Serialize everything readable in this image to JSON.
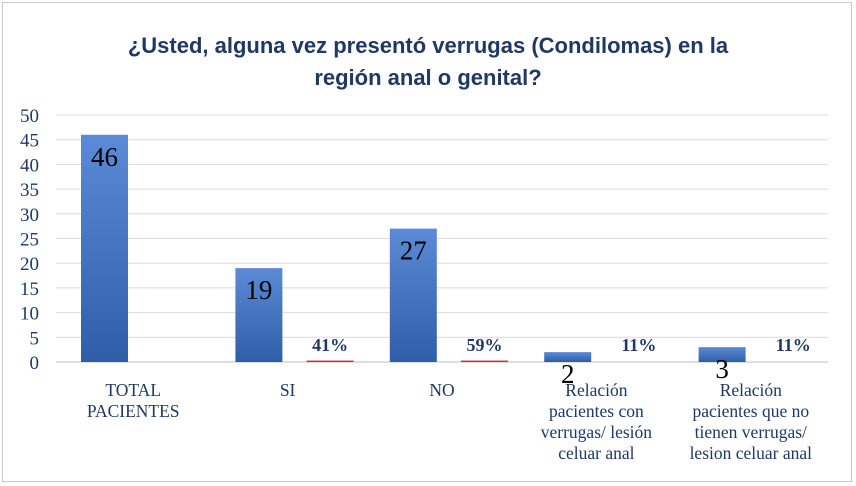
{
  "chart_data": {
    "type": "bar",
    "title_lines": [
      "¿Usted, alguna vez presentó verrugas (Condilomas) en la",
      "región anal o genital?"
    ],
    "categories": [
      [
        "TOTAL",
        "PACIENTES"
      ],
      [
        "SI"
      ],
      [
        "NO"
      ],
      [
        "Relación",
        "pacientes con",
        "verrugas/ lesión",
        "celuar anal"
      ],
      [
        "Relación",
        "pacientes que no",
        "tienen verrugas/",
        "lesion celuar anal"
      ]
    ],
    "series": [
      {
        "values": [
          46,
          19,
          27,
          2,
          3
        ],
        "labels": [
          "46",
          "19",
          "27",
          "2",
          "3"
        ],
        "color": "#4472c4"
      },
      {
        "values": [
          0,
          0.41,
          0.59,
          0.11,
          0.11
        ],
        "labels": [
          "",
          "41%",
          "59%",
          "11%",
          "11%"
        ],
        "color": "#c00000"
      }
    ],
    "yticks": [
      "0",
      "5",
      "10",
      "15",
      "20",
      "25",
      "30",
      "35",
      "40",
      "45",
      "50"
    ],
    "ylim": [
      0,
      50
    ],
    "grid": true,
    "legend": "none"
  }
}
